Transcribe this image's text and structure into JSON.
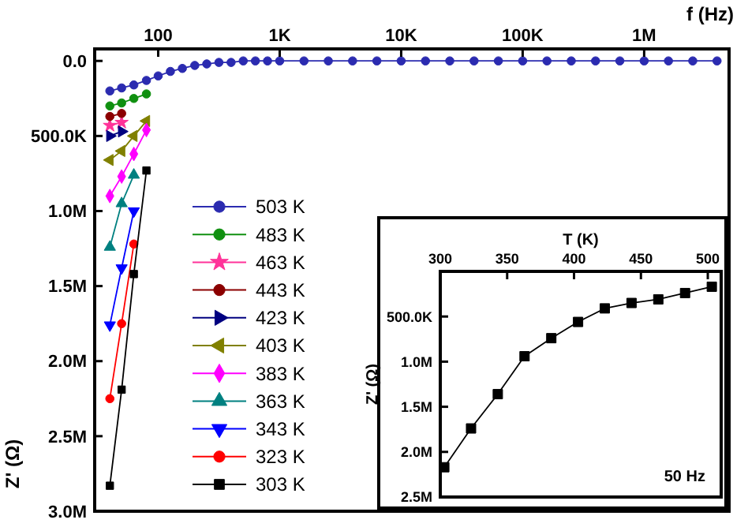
{
  "chart_data": [
    {
      "type": "line",
      "xlabel": "f (Hz)",
      "ylabel": "Z' (Ω)",
      "log": "x",
      "xlim": [
        30,
        5000000
      ],
      "xticks": [
        {
          "value": 100,
          "label": "100"
        },
        {
          "value": 1000,
          "label": "1K"
        },
        {
          "value": 10000,
          "label": "10K"
        },
        {
          "value": 100000,
          "label": "100K"
        },
        {
          "value": 1000000,
          "label": "1M"
        }
      ],
      "ylim": [
        3000000,
        -80000
      ],
      "yticks": [
        {
          "value": 0,
          "label": "0.0"
        },
        {
          "value": 500000,
          "label": "500.0K"
        },
        {
          "value": 1000000,
          "label": "1.0M"
        },
        {
          "value": 1500000,
          "label": "1.5M"
        },
        {
          "value": 2000000,
          "label": "2.0M"
        },
        {
          "value": 2500000,
          "label": "2.5M"
        },
        {
          "value": 3000000,
          "label": "3.0M"
        }
      ],
      "legend": "left",
      "x": [
        40,
        50,
        63,
        80,
        100,
        126,
        158,
        200,
        251,
        316,
        398,
        501,
        631,
        794,
        1000,
        1585,
        2512,
        3981,
        6310,
        10000,
        15850,
        25120,
        39810,
        63100,
        100000,
        158500,
        251200,
        398100,
        631000,
        1000000,
        1585000,
        2512000,
        3981000
      ],
      "series": [
        {
          "name": "503 K",
          "color": "#2b2bb0",
          "marker": "circle",
          "values": [
            200000,
            180000,
            160000,
            130000,
            100000,
            70000,
            50000,
            30000,
            20000,
            10000,
            10000,
            0,
            0,
            0,
            0,
            0,
            0,
            0,
            0,
            0,
            0,
            0,
            0,
            0,
            0,
            0,
            0,
            0,
            0,
            0,
            0,
            0,
            0
          ]
        },
        {
          "name": "483 K",
          "color": "#109010",
          "marker": "circle",
          "values": [
            300000,
            280000,
            250000,
            220000,
            null,
            null,
            null,
            null,
            null,
            null,
            null,
            null,
            null,
            null,
            null,
            null,
            null,
            null,
            null,
            null,
            null,
            null,
            null,
            null,
            null,
            null,
            null,
            null,
            null,
            null,
            null,
            null,
            null
          ]
        },
        {
          "name": "463 K",
          "color": "#ff3399",
          "marker": "star",
          "values": [
            430000,
            410000,
            null,
            null,
            null,
            null,
            null,
            null,
            null,
            null,
            null,
            null,
            null,
            null,
            null,
            null,
            null,
            null,
            null,
            null,
            null,
            null,
            null,
            null,
            null,
            null,
            null,
            null,
            null,
            null,
            null,
            null,
            null
          ]
        },
        {
          "name": "443 K",
          "color": "#8b0000",
          "marker": "circle",
          "values": [
            370000,
            350000,
            null,
            null,
            null,
            null,
            null,
            null,
            null,
            null,
            null,
            null,
            null,
            null,
            null,
            null,
            null,
            null,
            null,
            null,
            null,
            null,
            null,
            null,
            null,
            null,
            null,
            null,
            null,
            null,
            null,
            null,
            null
          ]
        },
        {
          "name": "423 K",
          "color": "#000080",
          "marker": "triangle-right",
          "values": [
            500000,
            470000,
            null,
            null,
            null,
            null,
            null,
            null,
            null,
            null,
            null,
            null,
            null,
            null,
            null,
            null,
            null,
            null,
            null,
            null,
            null,
            null,
            null,
            null,
            null,
            null,
            null,
            null,
            null,
            null,
            null,
            null,
            null
          ]
        },
        {
          "name": "403 K",
          "color": "#808000",
          "marker": "triangle-left",
          "values": [
            660000,
            600000,
            500000,
            400000,
            null,
            null,
            null,
            null,
            null,
            null,
            null,
            null,
            null,
            null,
            null,
            null,
            null,
            null,
            null,
            null,
            null,
            null,
            null,
            null,
            null,
            null,
            null,
            null,
            null,
            null,
            null,
            null,
            null
          ]
        },
        {
          "name": "383 K",
          "color": "#ff00ff",
          "marker": "diamond",
          "values": [
            900000,
            770000,
            620000,
            460000,
            null,
            null,
            null,
            null,
            null,
            null,
            null,
            null,
            null,
            null,
            null,
            null,
            null,
            null,
            null,
            null,
            null,
            null,
            null,
            null,
            null,
            null,
            null,
            null,
            null,
            null,
            null,
            null,
            null
          ]
        },
        {
          "name": "363 K",
          "color": "#008080",
          "marker": "triangle",
          "values": [
            1240000,
            950000,
            760000,
            null,
            null,
            null,
            null,
            null,
            null,
            null,
            null,
            null,
            null,
            null,
            null,
            null,
            null,
            null,
            null,
            null,
            null,
            null,
            null,
            null,
            null,
            null,
            null,
            null,
            null,
            null,
            null,
            null,
            null
          ]
        },
        {
          "name": "343 K",
          "color": "#0000ff",
          "marker": "triangle-down",
          "values": [
            1760000,
            1380000,
            1000000,
            null,
            null,
            null,
            null,
            null,
            null,
            null,
            null,
            null,
            null,
            null,
            null,
            null,
            null,
            null,
            null,
            null,
            null,
            null,
            null,
            null,
            null,
            null,
            null,
            null,
            null,
            null,
            null,
            null,
            null
          ]
        },
        {
          "name": "323 K",
          "color": "#ff0000",
          "marker": "circle",
          "values": [
            2250000,
            1750000,
            1220000,
            null,
            null,
            null,
            null,
            null,
            null,
            null,
            null,
            null,
            null,
            null,
            null,
            null,
            null,
            null,
            null,
            null,
            null,
            null,
            null,
            null,
            null,
            null,
            null,
            null,
            null,
            null,
            null,
            null,
            null
          ]
        },
        {
          "name": "303 K",
          "color": "#000000",
          "marker": "square",
          "values": [
            2830000,
            2190000,
            1420000,
            730000,
            null,
            null,
            null,
            null,
            null,
            null,
            null,
            null,
            null,
            null,
            null,
            null,
            null,
            null,
            null,
            null,
            null,
            null,
            null,
            null,
            null,
            null,
            null,
            null,
            null,
            null,
            null,
            null,
            null
          ]
        }
      ]
    },
    {
      "type": "line",
      "xlabel": "T (K)",
      "ylabel": "Z' (Ω)",
      "xlim": [
        300,
        510
      ],
      "xticks": [
        300,
        350,
        400,
        450,
        500
      ],
      "ylim": [
        2500000,
        0
      ],
      "yticks": [
        {
          "value": 500000,
          "label": "500.0K"
        },
        {
          "value": 1000000,
          "label": "1.0M"
        },
        {
          "value": 1500000,
          "label": "1.5M"
        },
        {
          "value": 2000000,
          "label": "2.0M"
        },
        {
          "value": 2500000,
          "label": "2.5M"
        }
      ],
      "annotations": [
        "50 Hz"
      ],
      "x": [
        303,
        323,
        343,
        363,
        383,
        403,
        423,
        443,
        463,
        483,
        503
      ],
      "series": [
        {
          "color": "#000000",
          "marker": "square",
          "values": [
            2170000,
            1740000,
            1360000,
            940000,
            740000,
            560000,
            410000,
            350000,
            310000,
            240000,
            170000
          ]
        }
      ]
    }
  ]
}
